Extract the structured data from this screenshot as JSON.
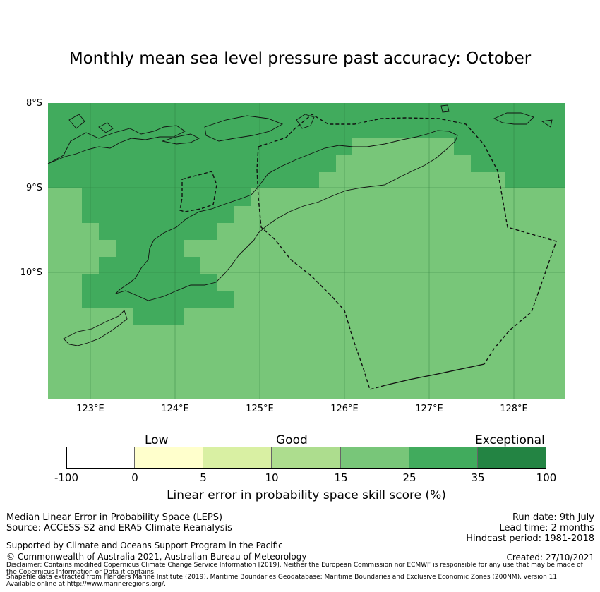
{
  "title": "Monthly mean sea level pressure past accuracy: October",
  "map": {
    "lat_labels": [
      "8°S",
      "9°S",
      "10°S"
    ],
    "lon_labels": [
      "123°E",
      "124°E",
      "125°E",
      "126°E",
      "127°E",
      "128°E"
    ],
    "lon_range": [
      122.5,
      128.6
    ],
    "lat_range": [
      -11.5,
      -8.0
    ],
    "skill_colors": {
      "good_15_25": "#78c679",
      "very_good_25_35": "#41ab5d"
    },
    "boundary_style": "dashed (EEZ) / solid coastline"
  },
  "colorbar": {
    "category_labels": [
      "Low",
      "Good",
      "Exceptional"
    ],
    "ticks": [
      "-100",
      "0",
      "5",
      "10",
      "15",
      "25",
      "35",
      "100"
    ],
    "colors": [
      "#ffffff",
      "#ffffcc",
      "#d9f0a3",
      "#addd8e",
      "#78c679",
      "#41ab5d",
      "#238443"
    ],
    "title": "Linear error in probability space skill score (%)"
  },
  "footer": {
    "method": "Median Linear Error in Probability Space (LEPS)",
    "source": "Source: ACCESS-S2 and ERA5 Climate Reanalysis",
    "run_date": "Run date: 9th July",
    "lead_time": "Lead time: 2 months",
    "hindcast": "Hindcast period: 1981-2018",
    "support": "Supported by Climate and Oceans Support Program in the Pacific",
    "copyright": "© Commonwealth of Australia 2021, Australian Bureau of Meteorology",
    "created": "Created: 27/10/2021",
    "disclaimer_1": "Disclaimer: Contains modified Copernicus Climate Change Service Information [2019]. Neither the European Commission nor ECMWF is responsible for any use that may be made of",
    "disclaimer_2": "the Copernicus Information or Data it contains.",
    "shapefile_1": "Shapefile data extracted from Flanders Marine Institute (2019), Maritime Boundaries Geodatabase: Maritime Boundaries and Exclusive Economic Zones (200NM), version 11.",
    "shapefile_2": "Available online at http://www.marineregions.org/."
  }
}
